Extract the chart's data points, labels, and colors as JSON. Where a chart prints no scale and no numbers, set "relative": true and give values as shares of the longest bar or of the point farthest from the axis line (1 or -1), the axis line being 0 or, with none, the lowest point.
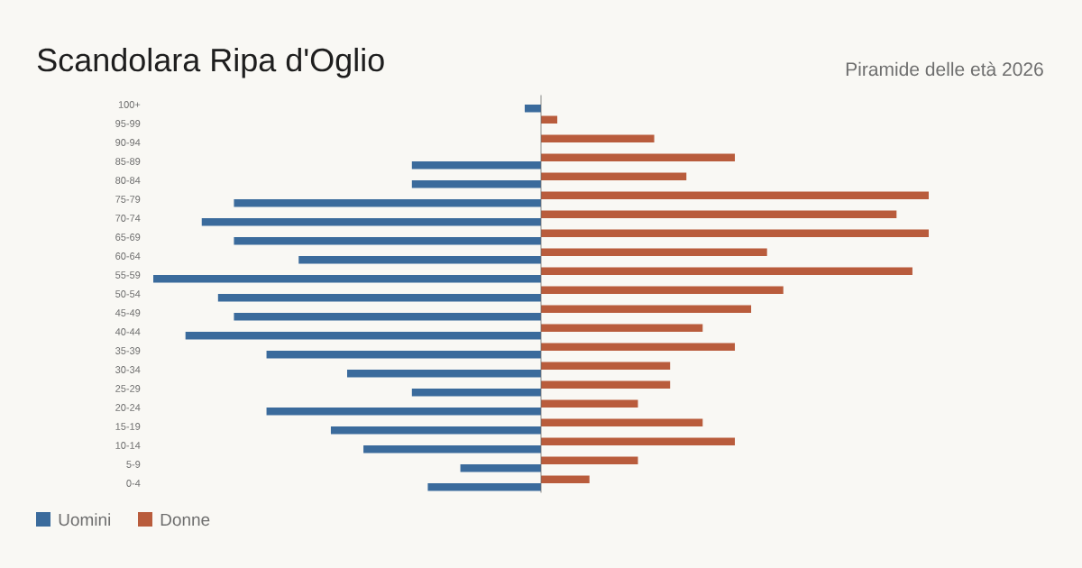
{
  "chart_data": {
    "type": "bar",
    "orientation": "horizontal",
    "relative": true,
    "title": "Scandolara Ripa d'Oglio",
    "subtitle": "Piramide delle età 2026",
    "categories": [
      "100+",
      "95-99",
      "90-94",
      "85-89",
      "80-84",
      "75-79",
      "70-74",
      "65-69",
      "60-64",
      "55-59",
      "50-54",
      "45-49",
      "40-44",
      "35-39",
      "30-34",
      "25-29",
      "20-24",
      "15-19",
      "10-14",
      "5-9",
      "0-4"
    ],
    "series": [
      {
        "name": "Uomini",
        "color": "#3b6b9c",
        "values": [
          -0.042,
          0,
          0,
          -0.333,
          -0.333,
          -0.792,
          -0.875,
          -0.792,
          -0.625,
          -1,
          -0.833,
          -0.792,
          -0.917,
          -0.708,
          -0.5,
          -0.333,
          -0.708,
          -0.542,
          -0.458,
          -0.208,
          -0.292
        ]
      },
      {
        "name": "Donne",
        "color": "#b95c3c",
        "values": [
          0,
          0.042,
          0.292,
          0.5,
          0.375,
          1,
          0.917,
          1,
          0.583,
          0.958,
          0.625,
          0.542,
          0.417,
          0.5,
          0.333,
          0.333,
          0.25,
          0.417,
          0.5,
          0.25,
          0.125
        ]
      }
    ],
    "legend": "bottom left"
  }
}
